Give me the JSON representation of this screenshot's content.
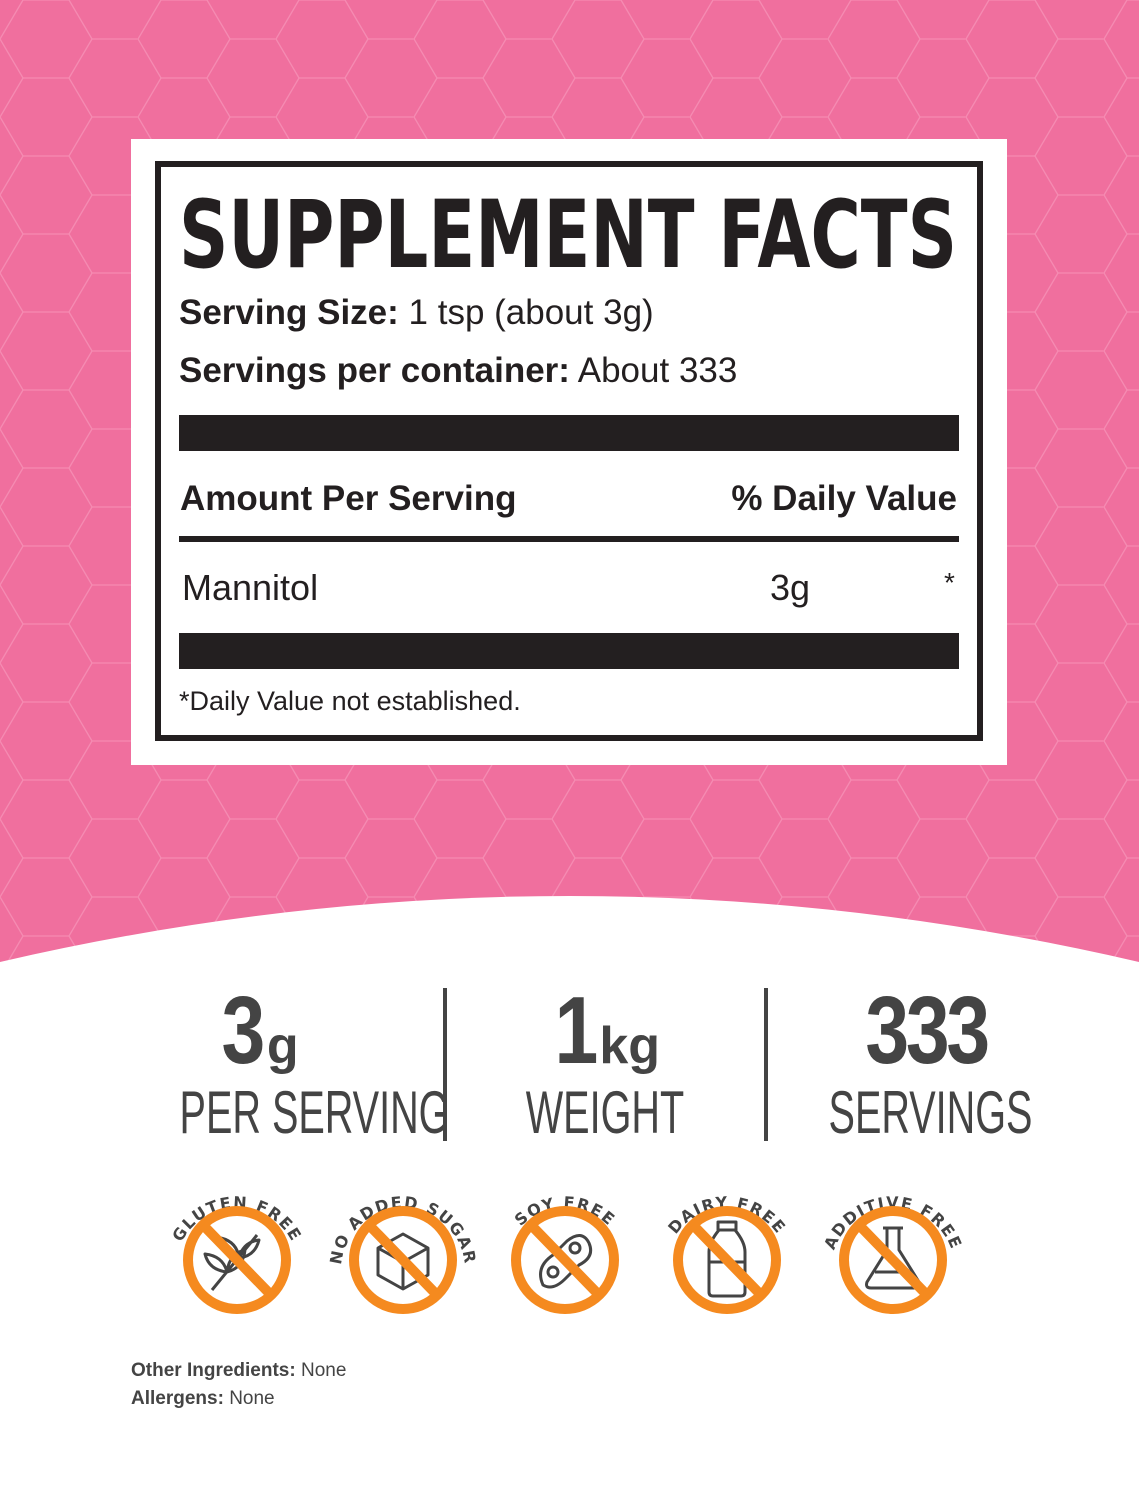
{
  "colors": {
    "background": "#f06f9e",
    "pattern": "#f58bb2",
    "ink": "#231f20",
    "gray": "#444444",
    "badge_orange": "#f58a1f"
  },
  "facts": {
    "title": "SUPPLEMENT FACTS",
    "serving_size_label": "Serving Size:",
    "serving_size_value": "1 tsp (about 3g)",
    "servings_label": "Servings per container:",
    "servings_value": "About 333",
    "amount_header": "Amount Per Serving",
    "dv_header": "% Daily Value",
    "ingredient": {
      "name": "Mannitol",
      "amount": "3g",
      "dv": "*"
    },
    "footnote": "*Daily Value not established."
  },
  "stats": [
    {
      "number": "3",
      "unit": "g",
      "label": "PER SERVING"
    },
    {
      "number": "1",
      "unit": "kg",
      "label": "WEIGHT"
    },
    {
      "number": "333",
      "unit": "",
      "label": "SERVINGS"
    }
  ],
  "badges": [
    {
      "label": "GLUTEN FREE",
      "icon": "wheat-icon"
    },
    {
      "label": "NO ADDED SUGAR",
      "icon": "sugar-cube-icon"
    },
    {
      "label": "SOY FREE",
      "icon": "soybean-icon"
    },
    {
      "label": "DAIRY FREE",
      "icon": "milk-bottle-icon"
    },
    {
      "label": "ADDITIVE FREE",
      "icon": "flask-icon"
    }
  ],
  "footer": {
    "other_label": "Other Ingredients:",
    "other_value": "None",
    "allergens_label": "Allergens:",
    "allergens_value": "None"
  }
}
